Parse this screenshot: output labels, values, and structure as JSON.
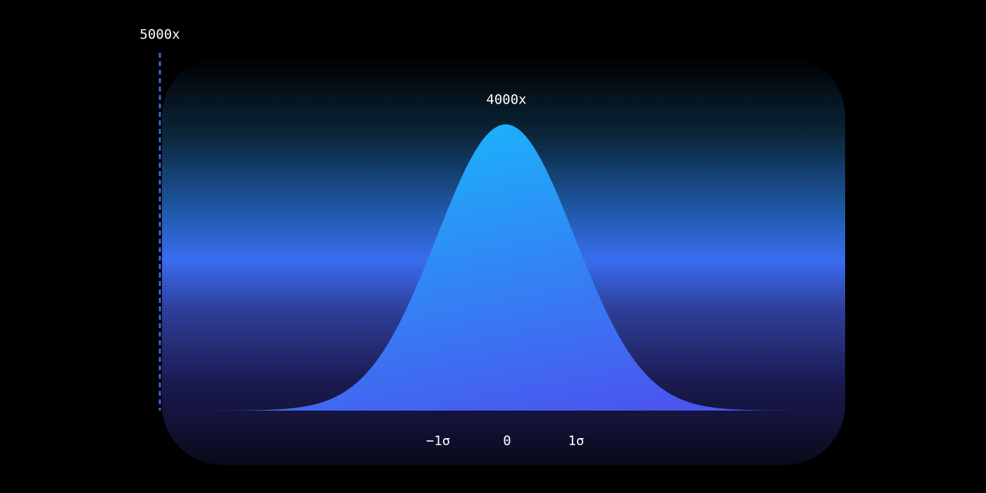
{
  "chart_data": {
    "type": "area",
    "distribution": "normal",
    "title": "",
    "xlabel": "",
    "ylabel": "",
    "y_axis_max_label": "5000x",
    "peak_label": "4000x",
    "x_tick_labels": [
      "−1σ",
      "0",
      "1σ"
    ],
    "x_ticks": [
      -1,
      0,
      1
    ],
    "xlim": [
      -4.2,
      4.2
    ],
    "ylim": [
      0,
      5000
    ],
    "mean": 0,
    "std_dev": 1,
    "peak_value": 4000,
    "grid": false,
    "legend": false
  },
  "colors": {
    "background": "#000000",
    "panel_top": "#000000",
    "panel_mid": "#3a6cf0",
    "panel_bottom": "#0a0a1c",
    "curve_top": "#1ab4fb",
    "curve_bottom": "#4a55ee",
    "y_axis": "#3d63e0",
    "x_axis_left": "#3d52e0",
    "x_axis_right": "#2aa0ff",
    "text": "#ffffff"
  }
}
